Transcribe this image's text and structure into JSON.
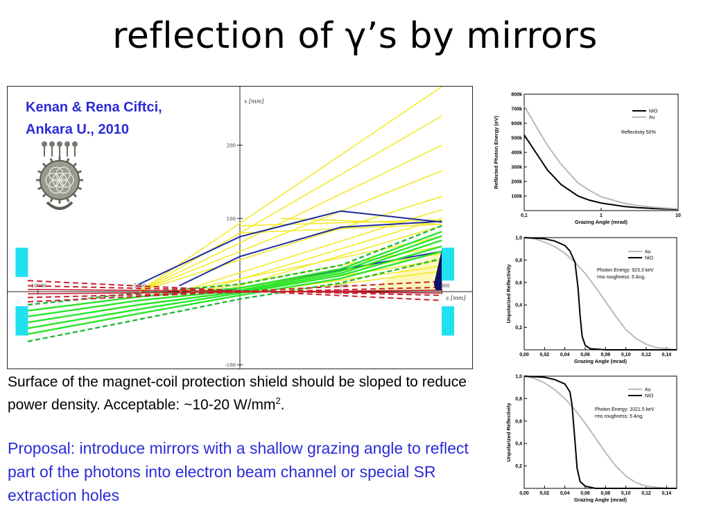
{
  "slide": {
    "title": "reflection of γ’s by mirrors",
    "credit": [
      "Kenan & Rena Ciftci,",
      "Ankara U., 2010"
    ],
    "caption_main": "Surface of the magnet-coil protection shield should be sloped to reduce power density. Acceptable: ~10-20 W/mm",
    "caption_sup": "2",
    "caption_end": ".",
    "proposal": "Proposal: introduce mirrors with a shallow grazing angle to reflect part of the photons into electron beam channel or special SR extraction holes",
    "colors": {
      "title": "#000000",
      "credit": "#2b2bd6",
      "proposal": "#2b2bd6",
      "photon_lines": "#f2ea2a",
      "electron_lines": "#27e627",
      "dashed_envelope": "#c8202e",
      "blue_orbits": "#1d2b9b",
      "magnets": "#21e1f0"
    },
    "icons": {
      "emblem": "ornamental-sun-disc-icon"
    }
  },
  "chart_data": [
    {
      "type": "line",
      "x_axis_label": "s [mm]",
      "y_axis_label": "x [mm]",
      "x_ticks": [
        "-10000",
        "-5000",
        "5000",
        "10000"
      ],
      "y_ticks": [
        "200",
        "100",
        "-100"
      ],
      "xlim": [
        -11500,
        11500
      ],
      "ylim": [
        -105,
        280
      ],
      "yellow_lines": [
        [
          [
            -5000,
            0
          ],
          [
            10000,
            280
          ]
        ],
        [
          [
            -5000,
            0
          ],
          [
            10000,
            240
          ]
        ],
        [
          [
            -5000,
            0
          ],
          [
            10000,
            200
          ]
        ],
        [
          [
            -5000,
            0
          ],
          [
            10000,
            165
          ]
        ],
        [
          [
            -5000,
            0
          ],
          [
            10000,
            130
          ]
        ],
        [
          [
            -3000,
            0
          ],
          [
            10000,
            112
          ]
        ],
        [
          [
            -2000,
            0
          ],
          [
            10000,
            100
          ]
        ],
        [
          [
            -1000,
            0
          ],
          [
            10000,
            90
          ]
        ],
        [
          [
            -3000,
            0
          ],
          [
            10000,
            75
          ]
        ],
        [
          [
            -2000,
            0
          ],
          [
            10000,
            62
          ]
        ],
        [
          [
            -1000,
            0
          ],
          [
            10000,
            52
          ]
        ],
        [
          [
            0,
            0
          ],
          [
            10000,
            43
          ]
        ],
        [
          [
            1000,
            0
          ],
          [
            10000,
            35
          ]
        ],
        [
          [
            2000,
            0
          ],
          [
            10000,
            28
          ]
        ],
        [
          [
            0,
            80
          ],
          [
            10000,
            92
          ]
        ],
        [
          [
            0,
            90
          ],
          [
            10000,
            98
          ]
        ],
        [
          [
            2000,
            100
          ],
          [
            10000,
            92
          ]
        ]
      ],
      "green_lines": [
        [
          [
            -10500,
            -58
          ],
          [
            -5000,
            -30
          ],
          [
            0,
            -5
          ],
          [
            5000,
            18
          ],
          [
            10000,
            55
          ]
        ],
        [
          [
            -10500,
            -50
          ],
          [
            -5000,
            -24
          ],
          [
            0,
            -2
          ],
          [
            5000,
            22
          ],
          [
            10000,
            62
          ]
        ],
        [
          [
            -10500,
            -42
          ],
          [
            -5000,
            -18
          ],
          [
            0,
            0
          ],
          [
            5000,
            25
          ],
          [
            10000,
            70
          ]
        ],
        [
          [
            -10500,
            -34
          ],
          [
            -5000,
            -12
          ],
          [
            0,
            2
          ],
          [
            5000,
            28
          ],
          [
            10000,
            76
          ]
        ],
        [
          [
            -10500,
            -26
          ],
          [
            -5000,
            -7
          ],
          [
            0,
            5
          ],
          [
            5000,
            31
          ],
          [
            10000,
            82
          ]
        ]
      ],
      "green_dashed": [
        [
          [
            -10500,
            -68
          ],
          [
            -5000,
            -38
          ],
          [
            0,
            -10
          ],
          [
            5000,
            12
          ],
          [
            10000,
            45
          ]
        ],
        [
          [
            -10500,
            -18
          ],
          [
            -5000,
            -2
          ],
          [
            0,
            10
          ],
          [
            5000,
            36
          ],
          [
            10000,
            90
          ]
        ]
      ],
      "red_dashed": [
        [
          [
            -10500,
            15
          ],
          [
            10000,
            -12
          ]
        ],
        [
          [
            -10500,
            -14
          ],
          [
            10000,
            14
          ]
        ],
        [
          [
            -10500,
            8
          ],
          [
            10000,
            -5
          ]
        ],
        [
          [
            -10500,
            -8
          ],
          [
            10000,
            6
          ]
        ]
      ],
      "red_solid": [
        [
          [
            -10500,
            3
          ],
          [
            10000,
            -2
          ]
        ],
        [
          [
            -10500,
            -3
          ],
          [
            10000,
            2
          ]
        ]
      ],
      "blue_curves": [
        [
          [
            -5000,
            10
          ],
          [
            0,
            75
          ],
          [
            5000,
            110
          ],
          [
            10000,
            95
          ]
        ],
        [
          [
            -3000,
            8
          ],
          [
            0,
            48
          ],
          [
            5000,
            88
          ],
          [
            10000,
            96
          ]
        ],
        [
          [
            -1000,
            0
          ],
          [
            3000,
            20
          ],
          [
            7000,
            40
          ],
          [
            10000,
            55
          ]
        ]
      ],
      "magnets": [
        {
          "s": -10800,
          "x_from": 20,
          "x_to": 60
        },
        {
          "s": -10800,
          "x_from": -60,
          "x_to": -20
        },
        {
          "s": 10300,
          "x_from": 15,
          "x_to": 60
        },
        {
          "s": 10300,
          "x_from": -60,
          "x_to": -20
        }
      ]
    },
    {
      "type": "line",
      "xlabel": "Grazing Angle (mrad)",
      "ylabel": "Reflected Photon Energy (eV)",
      "x_scale": "log",
      "xlim": [
        0.1,
        10
      ],
      "ylim": [
        0,
        800
      ],
      "x_ticks": [
        "0,1",
        "1",
        "10"
      ],
      "y_ticks": [
        "100k",
        "200k",
        "300k",
        "400k",
        "500k",
        "600k",
        "700k",
        "800k"
      ],
      "annotation": "Reflectivity  50%",
      "legend_position": "top-right",
      "series": [
        {
          "name": "NIO",
          "color": "#000000",
          "x": [
            0.1,
            0.15,
            0.2,
            0.3,
            0.5,
            0.7,
            1,
            2,
            3,
            5,
            10
          ],
          "y": [
            520,
            380,
            280,
            180,
            100,
            72,
            52,
            28,
            20,
            14,
            8
          ]
        },
        {
          "name": "Au",
          "color": "#b9b9b9",
          "x": [
            0.1,
            0.15,
            0.2,
            0.3,
            0.5,
            0.7,
            1,
            2,
            3,
            5,
            10
          ],
          "y": [
            720,
            560,
            450,
            320,
            190,
            140,
            95,
            50,
            35,
            22,
            12
          ]
        }
      ]
    },
    {
      "type": "line",
      "xlabel": "Grazing Angle (mrad)",
      "ylabel": "Unpolarized Reflectivity",
      "xlim": [
        0,
        0.15
      ],
      "ylim": [
        0,
        1
      ],
      "x_ticks": [
        "0,00",
        "0,02",
        "0,04",
        "0,06",
        "0,08",
        "0,10",
        "0,12",
        "0,14"
      ],
      "y_ticks": [
        "0,2",
        "0,4",
        "0,6",
        "0,8",
        "1,0"
      ],
      "annotation": [
        "Photon Energy: 923.3 keV",
        "rms roughness: 5 Ang."
      ],
      "legend_position": "top-right",
      "series": [
        {
          "name": "Au",
          "color": "#b9b9b9",
          "x": [
            0,
            0.01,
            0.02,
            0.03,
            0.04,
            0.05,
            0.06,
            0.07,
            0.08,
            0.09,
            0.1,
            0.11,
            0.12,
            0.13,
            0.14,
            0.15
          ],
          "y": [
            1.0,
            0.99,
            0.96,
            0.92,
            0.86,
            0.78,
            0.68,
            0.56,
            0.43,
            0.3,
            0.18,
            0.1,
            0.05,
            0.02,
            0.01,
            0.0
          ]
        },
        {
          "name": "NiO",
          "color": "#000000",
          "x": [
            0,
            0.02,
            0.03,
            0.04,
            0.045,
            0.05,
            0.053,
            0.055,
            0.057,
            0.06,
            0.065,
            0.08,
            0.1,
            0.15
          ],
          "y": [
            1.0,
            0.99,
            0.97,
            0.93,
            0.88,
            0.78,
            0.55,
            0.3,
            0.12,
            0.04,
            0.01,
            0.0,
            0.0,
            0.0
          ]
        }
      ]
    },
    {
      "type": "line",
      "xlabel": "Grazing Angle (mrad)",
      "ylabel": "Unpolarized Reflectivity",
      "xlim": [
        0,
        0.15
      ],
      "ylim": [
        0,
        1
      ],
      "x_ticks": [
        "0,00",
        "0,02",
        "0,04",
        "0,06",
        "0,08",
        "0,10",
        "0,12",
        "0,14"
      ],
      "y_ticks": [
        "0,2",
        "0,4",
        "0,6",
        "0,8",
        "1,0"
      ],
      "annotation": [
        "Photon Energy: 1021.5 keV",
        "rms roughness: 5 Ang."
      ],
      "legend_position": "top-right",
      "series": [
        {
          "name": "Au",
          "color": "#b9b9b9",
          "x": [
            0,
            0.01,
            0.02,
            0.03,
            0.04,
            0.05,
            0.06,
            0.07,
            0.08,
            0.09,
            0.1,
            0.11,
            0.12,
            0.13,
            0.14,
            0.15
          ],
          "y": [
            1.0,
            0.98,
            0.94,
            0.88,
            0.8,
            0.7,
            0.58,
            0.45,
            0.32,
            0.2,
            0.11,
            0.05,
            0.02,
            0.01,
            0.0,
            0.0
          ]
        },
        {
          "name": "NIO",
          "color": "#000000",
          "x": [
            0,
            0.02,
            0.03,
            0.04,
            0.045,
            0.047,
            0.05,
            0.052,
            0.055,
            0.06,
            0.07,
            0.15
          ],
          "y": [
            1.0,
            0.99,
            0.97,
            0.93,
            0.86,
            0.75,
            0.42,
            0.18,
            0.06,
            0.02,
            0.0,
            0.0
          ]
        }
      ]
    }
  ]
}
